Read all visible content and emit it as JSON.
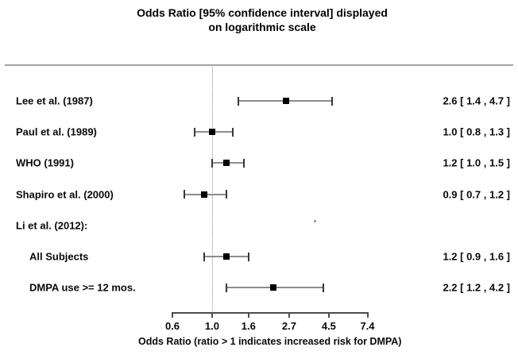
{
  "title": {
    "line1": "Odds Ratio [95% confidence interval] displayed",
    "line2": "on logarithmic scale"
  },
  "chart_data": {
    "type": "forest",
    "scale": "logarithmic",
    "title": "Odds Ratio [95% confidence interval] displayed on logarithmic scale",
    "xlabel": "Odds Ratio (ratio > 1 indicates increased risk for DMPA)",
    "xlim": [
      0.6,
      7.4
    ],
    "x_ticks": [
      "0.6",
      "1.0",
      "1.6",
      "2.7",
      "4.5",
      "7.4"
    ],
    "reference_line": 1.0,
    "grid": false,
    "rows": [
      {
        "label": "Lee et al. (1987)",
        "indent": false,
        "or": 2.6,
        "ci_low": 1.4,
        "ci_high": 4.7,
        "annotation": "2.6 [ 1.4 , 4.7 ]"
      },
      {
        "label": "Paul et al. (1989)",
        "indent": false,
        "or": 1.0,
        "ci_low": 0.8,
        "ci_high": 1.3,
        "annotation": "1.0 [ 0.8 , 1.3 ]"
      },
      {
        "label": "WHO (1991)",
        "indent": false,
        "or": 1.2,
        "ci_low": 1.0,
        "ci_high": 1.5,
        "annotation": "1.2 [ 1.0 , 1.5 ]"
      },
      {
        "label": "Shapiro et al. (2000)",
        "indent": false,
        "or": 0.9,
        "ci_low": 0.7,
        "ci_high": 1.2,
        "annotation": "0.9 [ 0.7 , 1.2 ]"
      },
      {
        "label": "Li et al. (2012):",
        "indent": false,
        "or": null,
        "ci_low": null,
        "ci_high": null,
        "annotation": ""
      },
      {
        "label": "All Subjects",
        "indent": true,
        "or": 1.2,
        "ci_low": 0.9,
        "ci_high": 1.6,
        "annotation": "1.2 [ 0.9 , 1.6 ]"
      },
      {
        "label": "DMPA use >= 12 mos.",
        "indent": true,
        "or": 2.2,
        "ci_low": 1.2,
        "ci_high": 4.2,
        "annotation": "2.2 [ 1.2 , 4.2 ]"
      }
    ]
  },
  "colors": {
    "background": "#ffffff",
    "text": "#0a0a0a",
    "top_rule": "#a3a3a3",
    "reference_line": "#8f8f8f",
    "ci_line": "#8c8c8c",
    "ci_cap": "#383838",
    "point_square": "#000000",
    "axis": "#4d4d4d"
  }
}
